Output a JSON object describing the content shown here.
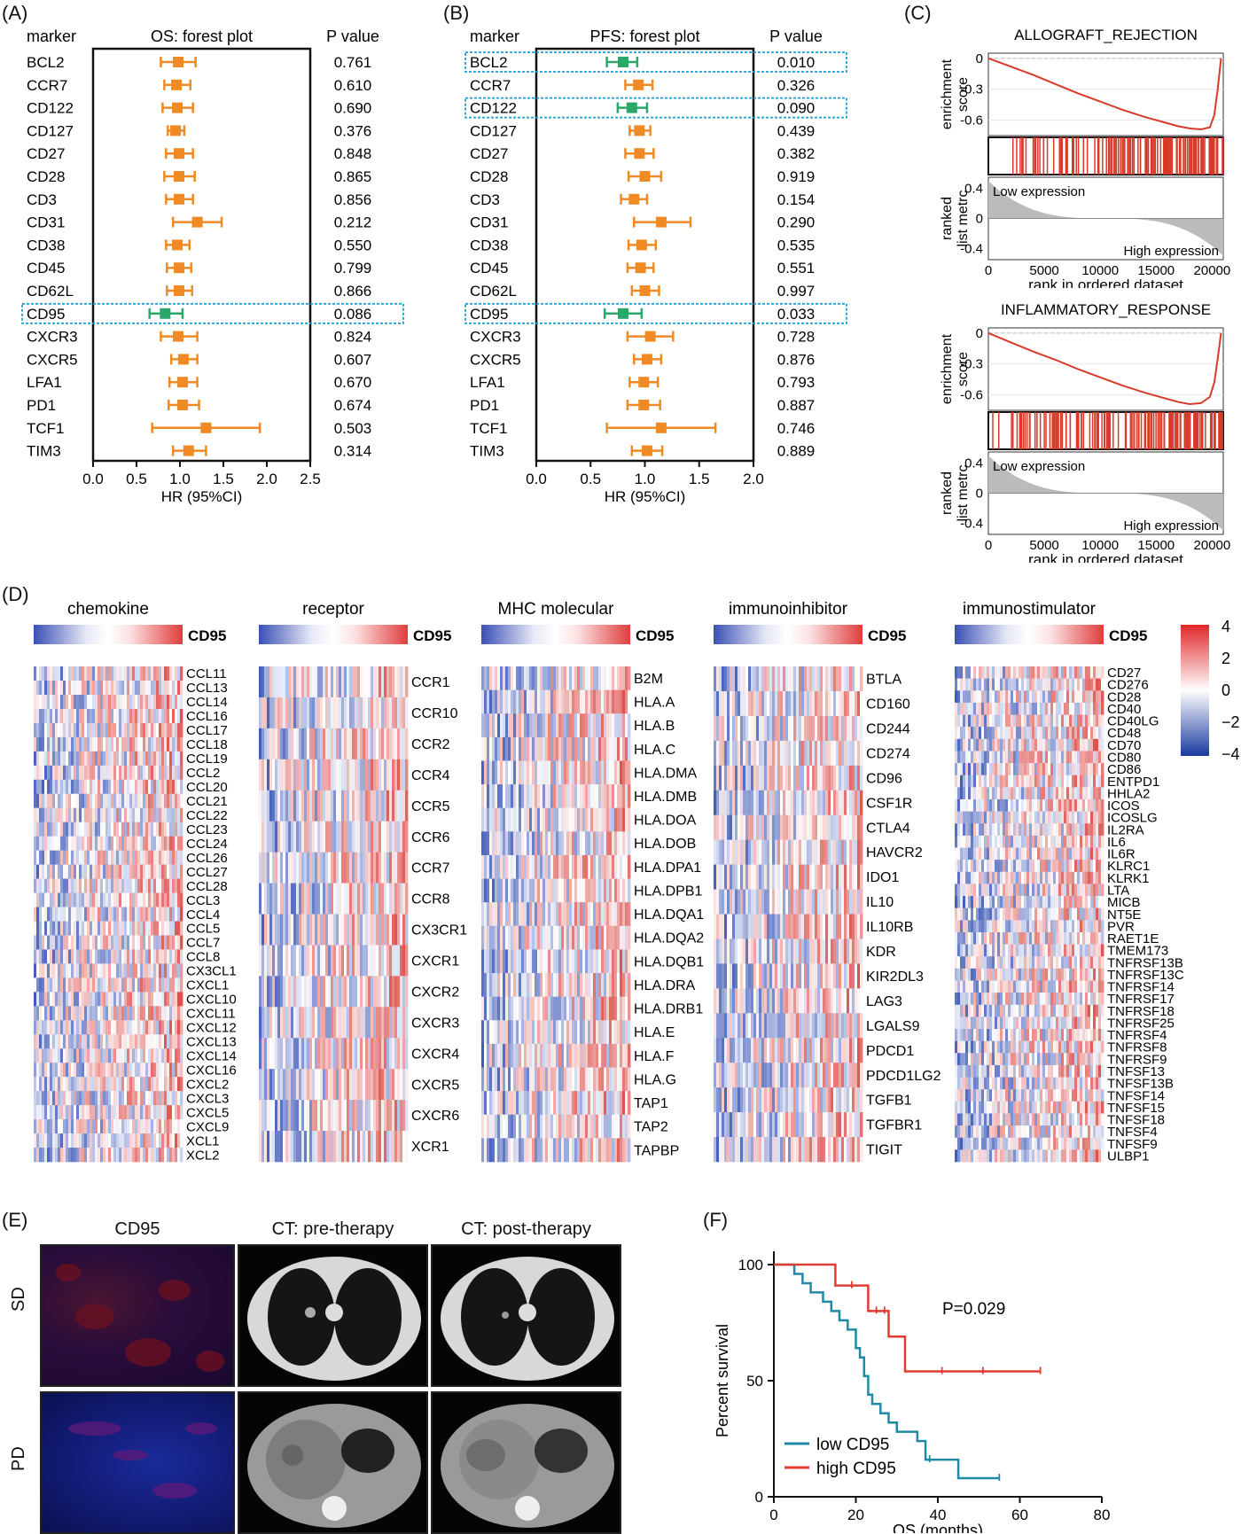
{
  "panels": {
    "A": "(A)",
    "B": "(B)",
    "C": "(C)",
    "D": "(D)",
    "E": "(E)",
    "F": "(F)"
  },
  "forest_labels": {
    "marker": "marker",
    "pvalue": "P value",
    "os_title": "OS: forest plot",
    "pfs_title": "PFS: forest plot",
    "xlabel": "HR (95%CI)",
    "os_ticks": [
      "0.0",
      "0.5",
      "1.0",
      "1.5",
      "2.0",
      "2.5"
    ],
    "pfs_ticks": [
      "0.0",
      "0.5",
      "1.0",
      "1.5",
      "2.0"
    ]
  },
  "gsea_labels": {
    "ylabel1a": "enrichment",
    "ylabel1b": "score",
    "ylabel2a": "ranked",
    "ylabel2b": "list metrc",
    "low": "Low expression",
    "high": "High expression",
    "xlabel": "rank in ordered dataset",
    "es_ticks": [
      "0",
      "-0.3",
      "-0.6"
    ],
    "rank_ticks": [
      "0.4",
      "0",
      "-0.4"
    ],
    "x_ticks": [
      "0",
      "5000",
      "10000",
      "15000",
      "20000"
    ]
  },
  "heatmap_labels": {
    "cd95": "CD95",
    "legend_ticks": [
      "4",
      "2",
      "0",
      "−2",
      "−4"
    ]
  },
  "images_labels": {
    "col1": "CD95",
    "col2": "CT: pre-therapy",
    "col3": "CT: post-therapy",
    "row1": "SD",
    "row2": "PD"
  },
  "chart_data": [
    {
      "type": "forest",
      "title": "OS: forest plot",
      "xlabel": "HR (95%CI)",
      "xlim": [
        0,
        2.5
      ],
      "markers": [
        "BCL2",
        "CCR7",
        "CD122",
        "CD127",
        "CD27",
        "CD28",
        "CD3",
        "CD31",
        "CD38",
        "CD45",
        "CD62L",
        "CD95",
        "CXCR3",
        "CXCR5",
        "LFA1",
        "PD1",
        "TCF1",
        "TIM3"
      ],
      "hr": [
        0.98,
        0.96,
        0.97,
        0.95,
        0.99,
        0.99,
        0.99,
        1.2,
        0.97,
        0.99,
        0.99,
        0.83,
        0.98,
        1.04,
        1.03,
        1.03,
        1.3,
        1.1
      ],
      "low": [
        0.78,
        0.82,
        0.8,
        0.86,
        0.84,
        0.82,
        0.84,
        0.92,
        0.84,
        0.85,
        0.85,
        0.65,
        0.78,
        0.9,
        0.88,
        0.87,
        0.68,
        0.92
      ],
      "high": [
        1.18,
        1.12,
        1.15,
        1.05,
        1.15,
        1.17,
        1.15,
        1.48,
        1.11,
        1.13,
        1.14,
        1.03,
        1.2,
        1.2,
        1.2,
        1.22,
        1.92,
        1.3
      ],
      "p": [
        "0.761",
        "0.610",
        "0.690",
        "0.376",
        "0.848",
        "0.865",
        "0.856",
        "0.212",
        "0.550",
        "0.799",
        "0.866",
        "0.086",
        "0.824",
        "0.607",
        "0.670",
        "0.674",
        "0.503",
        "0.314"
      ],
      "highlight": [
        11
      ]
    },
    {
      "type": "forest",
      "title": "PFS: forest plot",
      "xlabel": "HR (95%CI)",
      "xlim": [
        0,
        2.0
      ],
      "markers": [
        "BCL2",
        "CCR7",
        "CD122",
        "CD127",
        "CD27",
        "CD28",
        "CD3",
        "CD31",
        "CD38",
        "CD45",
        "CD62L",
        "CD95",
        "CXCR3",
        "CXCR5",
        "LFA1",
        "PD1",
        "TCF1",
        "TIM3"
      ],
      "hr": [
        0.8,
        0.94,
        0.88,
        0.95,
        0.95,
        1.0,
        0.9,
        1.15,
        0.97,
        0.96,
        1.0,
        0.8,
        1.05,
        1.02,
        0.99,
        0.99,
        1.15,
        1.02
      ],
      "low": [
        0.65,
        0.82,
        0.75,
        0.86,
        0.82,
        0.85,
        0.78,
        0.9,
        0.85,
        0.84,
        0.88,
        0.63,
        0.84,
        0.9,
        0.86,
        0.84,
        0.65,
        0.88
      ],
      "high": [
        0.93,
        1.07,
        1.02,
        1.05,
        1.08,
        1.15,
        1.02,
        1.42,
        1.1,
        1.08,
        1.13,
        0.97,
        1.26,
        1.15,
        1.12,
        1.14,
        1.65,
        1.16
      ],
      "p": [
        "0.010",
        "0.326",
        "0.090",
        "0.439",
        "0.382",
        "0.919",
        "0.154",
        "0.290",
        "0.535",
        "0.551",
        "0.997",
        "0.033",
        "0.728",
        "0.876",
        "0.793",
        "0.887",
        "0.746",
        "0.889"
      ],
      "highlight": [
        0,
        2,
        11
      ]
    },
    {
      "type": "line",
      "title": "ALLOGRAFT_REJECTION",
      "xlabel": "rank in ordered dataset",
      "xlim": [
        0,
        21000
      ],
      "ylim": [
        -0.75,
        0.05
      ],
      "x": [
        0,
        2000,
        4000,
        6000,
        8000,
        10000,
        12000,
        14000,
        16000,
        17000,
        18000,
        19000,
        19800,
        20200,
        20500,
        20800
      ],
      "y": [
        0,
        -0.08,
        -0.16,
        -0.25,
        -0.34,
        -0.42,
        -0.5,
        -0.57,
        -0.63,
        -0.66,
        -0.68,
        -0.69,
        -0.67,
        -0.55,
        -0.3,
        0
      ]
    },
    {
      "type": "line",
      "title": "INFLAMMATORY_RESPONSE",
      "xlabel": "rank in ordered dataset",
      "xlim": [
        0,
        21000
      ],
      "ylim": [
        -0.75,
        0.05
      ],
      "x": [
        0,
        2000,
        4000,
        6000,
        8000,
        10000,
        12000,
        14000,
        16000,
        17000,
        18000,
        19000,
        19800,
        20200,
        20500,
        20800
      ],
      "y": [
        0,
        -0.09,
        -0.18,
        -0.26,
        -0.35,
        -0.43,
        -0.51,
        -0.58,
        -0.64,
        -0.67,
        -0.69,
        -0.68,
        -0.62,
        -0.48,
        -0.25,
        0
      ]
    },
    {
      "type": "heatmap",
      "groups": [
        {
          "title": "chemokine",
          "genes": [
            "CCL11",
            "CCL13",
            "CCL14",
            "CCL16",
            "CCL17",
            "CCL18",
            "CCL19",
            "CCL2",
            "CCL20",
            "CCL21",
            "CCL22",
            "CCL23",
            "CCL24",
            "CCL26",
            "CCL27",
            "CCL28",
            "CCL3",
            "CCL4",
            "CCL5",
            "CCL7",
            "CCL8",
            "CX3CL1",
            "CXCL1",
            "CXCL10",
            "CXCL11",
            "CXCL12",
            "CXCL13",
            "CXCL14",
            "CXCL16",
            "CXCL2",
            "CXCL3",
            "CXCL5",
            "CXCL9",
            "XCL1",
            "XCL2"
          ]
        },
        {
          "title": "receptor",
          "genes": [
            "CCR1",
            "CCR10",
            "CCR2",
            "CCR4",
            "CCR5",
            "CCR6",
            "CCR7",
            "CCR8",
            "CX3CR1",
            "CXCR1",
            "CXCR2",
            "CXCR3",
            "CXCR4",
            "CXCR5",
            "CXCR6",
            "XCR1"
          ]
        },
        {
          "title": "MHC molecular",
          "genes": [
            "B2M",
            "HLA.A",
            "HLA.B",
            "HLA.C",
            "HLA.DMA",
            "HLA.DMB",
            "HLA.DOA",
            "HLA.DOB",
            "HLA.DPA1",
            "HLA.DPB1",
            "HLA.DQA1",
            "HLA.DQA2",
            "HLA.DQB1",
            "HLA.DRA",
            "HLA.DRB1",
            "HLA.E",
            "HLA.F",
            "HLA.G",
            "TAP1",
            "TAP2",
            "TAPBP"
          ]
        },
        {
          "title": "immunoinhibitor",
          "genes": [
            "BTLA",
            "CD160",
            "CD244",
            "CD274",
            "CD96",
            "CSF1R",
            "CTLA4",
            "HAVCR2",
            "IDO1",
            "IL10",
            "IL10RB",
            "KDR",
            "KIR2DL3",
            "LAG3",
            "LGALS9",
            "PDCD1",
            "PDCD1LG2",
            "TGFB1",
            "TGFBR1",
            "TIGIT"
          ]
        },
        {
          "title": "immunostimulator",
          "genes": [
            "CD27",
            "CD276",
            "CD28",
            "CD40",
            "CD40LG",
            "CD48",
            "CD70",
            "CD80",
            "CD86",
            "ENTPD1",
            "HHLA2",
            "ICOS",
            "ICOSLG",
            "IL2RA",
            "IL6",
            "IL6R",
            "KLRC1",
            "KLRK1",
            "LTA",
            "MICB",
            "NT5E",
            "PVR",
            "RAET1E",
            "TMEM173",
            "TNFRSF13B",
            "TNFRSF13C",
            "TNFRSF14",
            "TNFRSF17",
            "TNFRSF18",
            "TNFRSF25",
            "TNFRSF4",
            "TNFRSF8",
            "TNFRSF9",
            "TNFSF13",
            "TNFSF13B",
            "TNFSF14",
            "TNFSF15",
            "TNFSF18",
            "TNFSF4",
            "TNFSF9",
            "ULBP1"
          ]
        }
      ],
      "scale": [
        -4,
        4
      ]
    },
    {
      "type": "line",
      "title": "",
      "xlabel": "OS (months)",
      "ylabel": "Percent survival",
      "xlim": [
        0,
        80
      ],
      "ylim": [
        0,
        100
      ],
      "x_ticks": [
        "0",
        "20",
        "40",
        "60",
        "80"
      ],
      "y_ticks": [
        "0",
        "50",
        "100"
      ],
      "annotation": "P=0.029",
      "series": [
        {
          "name": "low CD95",
          "color": "#1f8aa6",
          "steps": [
            [
              0,
              100
            ],
            [
              5,
              100
            ],
            [
              5,
              96
            ],
            [
              7,
              96
            ],
            [
              7,
              92
            ],
            [
              9,
              92
            ],
            [
              9,
              88
            ],
            [
              12,
              88
            ],
            [
              12,
              84
            ],
            [
              14,
              84
            ],
            [
              14,
              80
            ],
            [
              16,
              80
            ],
            [
              16,
              76
            ],
            [
              18,
              76
            ],
            [
              18,
              72
            ],
            [
              20,
              72
            ],
            [
              20,
              64
            ],
            [
              21,
              64
            ],
            [
              21,
              60
            ],
            [
              22,
              60
            ],
            [
              22,
              52
            ],
            [
              23,
              52
            ],
            [
              23,
              44
            ],
            [
              24,
              44
            ],
            [
              24,
              40
            ],
            [
              26,
              40
            ],
            [
              26,
              36
            ],
            [
              28,
              36
            ],
            [
              28,
              32
            ],
            [
              30,
              32
            ],
            [
              30,
              28
            ],
            [
              35,
              28
            ],
            [
              35,
              24
            ],
            [
              37,
              24
            ],
            [
              37,
              16
            ],
            [
              45,
              16
            ],
            [
              45,
              8
            ],
            [
              55,
              8
            ]
          ],
          "censored": [
            [
              38,
              16
            ],
            [
              55,
              8
            ]
          ]
        },
        {
          "name": "high CD95",
          "color": "#e03c31",
          "steps": [
            [
              0,
              100
            ],
            [
              15,
              100
            ],
            [
              15,
              91
            ],
            [
              23,
              91
            ],
            [
              23,
              80
            ],
            [
              28,
              80
            ],
            [
              28,
              69
            ],
            [
              32,
              69
            ],
            [
              32,
              54
            ],
            [
              65,
              54
            ]
          ],
          "censored": [
            [
              19,
              91
            ],
            [
              25,
              80
            ],
            [
              27,
              80
            ],
            [
              41,
              54
            ],
            [
              51,
              54
            ],
            [
              65,
              54
            ]
          ]
        }
      ]
    }
  ],
  "colors": {
    "orange": "#f08a24",
    "green": "#2aa86a",
    "red": "#d83a2a",
    "blue": "#2b4aa8",
    "box": "#1a9ed6",
    "grey": "#bbbbbb"
  }
}
